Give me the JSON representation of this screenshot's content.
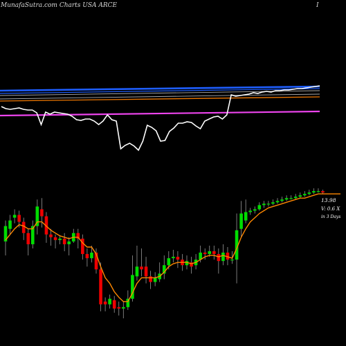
{
  "header": {
    "title": "MunafaSutra.com Charts USA ARCE",
    "right_mark": "I"
  },
  "labels": {
    "price": "13.98",
    "volume": "V: 0.6  X",
    "days": "in 3 Days"
  },
  "colors": {
    "background": "#000000",
    "up_candle": "#00dd00",
    "down_candle": "#ee0000",
    "wick": "#999999",
    "price_ma": "#ff8800",
    "indicator_white": "#ffffff",
    "band_blue": "#1e5eff",
    "band_magenta": "#ee44ee",
    "band_orange": "#ee7700"
  },
  "chart_data": [
    {
      "type": "line",
      "panel": "indicator",
      "series": [
        {
          "values": [
            0.66,
            0.63,
            0.62,
            0.63,
            0.64,
            0.62,
            0.61,
            0.61,
            0.57,
            0.4,
            0.58,
            0.55,
            0.58,
            0.57,
            0.56,
            0.55,
            0.52,
            0.47,
            0.46,
            0.48,
            0.48,
            0.45,
            0.4,
            0.45,
            0.54,
            0.47,
            0.45,
            0.05,
            0.1,
            0.13,
            0.09,
            0.03,
            0.16,
            0.39,
            0.36,
            0.31,
            0.16,
            0.17,
            0.3,
            0.35,
            0.42,
            0.42,
            0.44,
            0.43,
            0.38,
            0.34,
            0.45,
            0.48,
            0.51,
            0.52,
            0.48,
            0.54,
            0.83,
            0.81,
            0.82,
            0.83,
            0.84,
            0.86,
            0.85,
            0.87,
            0.88,
            0.87,
            0.89,
            0.89,
            0.9,
            0.9,
            0.91,
            0.92,
            0.92,
            0.93,
            0.94,
            0.95,
            0.96
          ]
        },
        {
          "values": [
            0.89,
            0.95
          ]
        },
        {
          "values": [
            0.85,
            0.92
          ]
        },
        {
          "values": [
            0.74,
            0.8
          ]
        },
        {
          "values": [
            0.53,
            0.59
          ]
        },
        {
          "values": [
            0.82,
            0.89
          ]
        },
        {
          "values": [
            0.77,
            0.84
          ]
        }
      ]
    },
    {
      "type": "candlestick",
      "panel": "price",
      "ylim": [
        0,
        1
      ],
      "series": [
        {
          "values": [
            [
              0.55,
              0.66,
              0.7,
              0.45
            ],
            [
              0.64,
              0.7,
              0.74,
              0.6
            ],
            [
              0.72,
              0.74,
              0.78,
              0.68
            ],
            [
              0.74,
              0.69,
              0.77,
              0.65
            ],
            [
              0.69,
              0.61,
              0.72,
              0.56
            ],
            [
              0.61,
              0.53,
              0.64,
              0.45
            ],
            [
              0.53,
              0.66,
              0.7,
              0.5
            ],
            [
              0.66,
              0.8,
              0.85,
              0.6
            ],
            [
              0.78,
              0.73,
              0.86,
              0.65
            ],
            [
              0.73,
              0.6,
              0.76,
              0.54
            ],
            [
              0.6,
              0.58,
              0.64,
              0.52
            ],
            [
              0.58,
              0.56,
              0.6,
              0.5
            ],
            [
              0.56,
              0.57,
              0.59,
              0.53
            ],
            [
              0.57,
              0.53,
              0.61,
              0.48
            ],
            [
              0.53,
              0.55,
              0.58,
              0.45
            ],
            [
              0.55,
              0.61,
              0.64,
              0.54
            ],
            [
              0.61,
              0.57,
              0.64,
              0.5
            ],
            [
              0.57,
              0.46,
              0.6,
              0.42
            ],
            [
              0.46,
              0.43,
              0.5,
              0.37
            ],
            [
              0.43,
              0.47,
              0.52,
              0.4
            ],
            [
              0.47,
              0.35,
              0.5,
              0.32
            ],
            [
              0.35,
              0.1,
              0.4,
              0.05
            ],
            [
              0.12,
              0.1,
              0.15,
              0.05
            ],
            [
              0.1,
              0.14,
              0.17,
              0.07
            ],
            [
              0.13,
              0.07,
              0.16,
              0.04
            ],
            [
              0.08,
              0.07,
              0.12,
              0.02
            ],
            [
              0.07,
              0.08,
              0.12,
              0.0
            ],
            [
              0.08,
              0.14,
              0.2,
              0.06
            ],
            [
              0.14,
              0.31,
              0.45,
              0.12
            ],
            [
              0.3,
              0.37,
              0.52,
              0.27
            ],
            [
              0.37,
              0.35,
              0.5,
              0.3
            ],
            [
              0.37,
              0.3,
              0.44,
              0.25
            ],
            [
              0.3,
              0.26,
              0.34,
              0.21
            ],
            [
              0.26,
              0.29,
              0.33,
              0.23
            ],
            [
              0.28,
              0.32,
              0.4,
              0.26
            ],
            [
              0.32,
              0.38,
              0.45,
              0.28
            ],
            [
              0.38,
              0.43,
              0.48,
              0.35
            ],
            [
              0.43,
              0.44,
              0.49,
              0.4
            ],
            [
              0.44,
              0.42,
              0.48,
              0.36
            ],
            [
              0.42,
              0.38,
              0.46,
              0.34
            ],
            [
              0.38,
              0.41,
              0.45,
              0.35
            ],
            [
              0.4,
              0.37,
              0.44,
              0.32
            ],
            [
              0.38,
              0.42,
              0.46,
              0.35
            ],
            [
              0.42,
              0.47,
              0.52,
              0.4
            ],
            [
              0.47,
              0.46,
              0.5,
              0.42
            ],
            [
              0.46,
              0.48,
              0.52,
              0.44
            ],
            [
              0.48,
              0.46,
              0.52,
              0.42
            ],
            [
              0.46,
              0.41,
              0.5,
              0.32
            ],
            [
              0.41,
              0.47,
              0.53,
              0.38
            ],
            [
              0.47,
              0.42,
              0.51,
              0.38
            ],
            [
              0.42,
              0.42,
              0.48,
              0.39
            ],
            [
              0.42,
              0.63,
              0.75,
              0.25
            ],
            [
              0.64,
              0.75,
              0.84,
              0.58
            ],
            [
              0.7,
              0.76,
              0.85,
              0.68
            ],
            [
              0.76,
              0.77,
              0.79,
              0.74
            ],
            [
              0.77,
              0.78,
              0.8,
              0.75
            ],
            [
              0.78,
              0.81,
              0.83,
              0.77
            ],
            [
              0.81,
              0.82,
              0.84,
              0.79
            ],
            [
              0.82,
              0.82,
              0.84,
              0.8
            ],
            [
              0.82,
              0.83,
              0.85,
              0.81
            ],
            [
              0.83,
              0.84,
              0.86,
              0.82
            ],
            [
              0.84,
              0.85,
              0.87,
              0.83
            ],
            [
              0.85,
              0.86,
              0.88,
              0.84
            ],
            [
              0.86,
              0.86,
              0.88,
              0.85
            ],
            [
              0.86,
              0.87,
              0.89,
              0.85
            ],
            [
              0.87,
              0.88,
              0.9,
              0.86
            ],
            [
              0.88,
              0.89,
              0.91,
              0.87
            ],
            [
              0.89,
              0.9,
              0.92,
              0.88
            ],
            [
              0.9,
              0.91,
              0.93,
              0.89
            ],
            [
              0.91,
              0.91,
              0.93,
              0.9
            ],
            [
              0.91,
              0.9,
              0.92,
              0.89
            ]
          ]
        },
        {
          "values": [
            0.56,
            0.6,
            0.64,
            0.67,
            0.66,
            0.64,
            0.64,
            0.69,
            0.69,
            0.66,
            0.63,
            0.61,
            0.59,
            0.58,
            0.57,
            0.58,
            0.58,
            0.54,
            0.51,
            0.51,
            0.46,
            0.37,
            0.29,
            0.25,
            0.19,
            0.15,
            0.12,
            0.12,
            0.18,
            0.25,
            0.29,
            0.29,
            0.29,
            0.29,
            0.3,
            0.33,
            0.37,
            0.39,
            0.4,
            0.4,
            0.4,
            0.39,
            0.4,
            0.42,
            0.44,
            0.45,
            0.45,
            0.44,
            0.45,
            0.44,
            0.43,
            0.5,
            0.58,
            0.64,
            0.69,
            0.72,
            0.75,
            0.77,
            0.79,
            0.8,
            0.81,
            0.82,
            0.83,
            0.84,
            0.85,
            0.86,
            0.86,
            0.87,
            0.88,
            0.89,
            0.89,
            0.89
          ]
        }
      ]
    }
  ]
}
